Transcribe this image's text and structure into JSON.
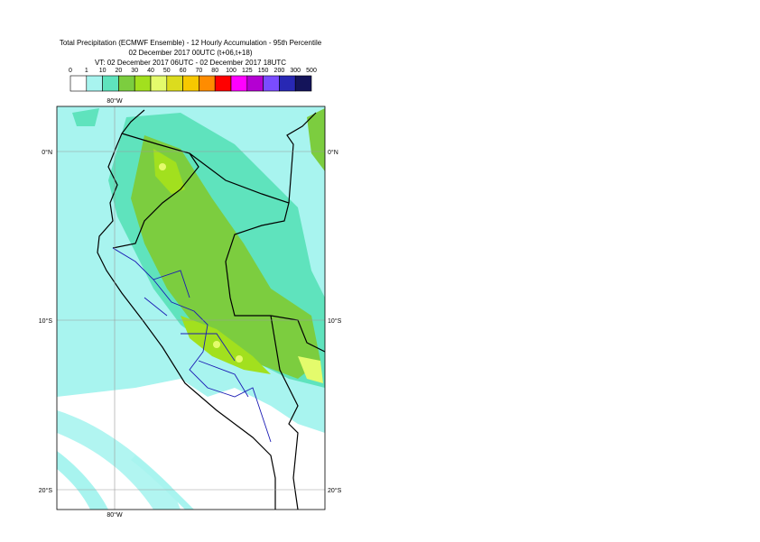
{
  "title": {
    "line1": "Total Precipitation (ECMWF Ensemble) - 12 Hourly Accumulation - 95th Percentile",
    "line2": "02 December 2017 00UTC (t+06,t+18)",
    "line3": "VT: 02 December 2017 06UTC - 02 December 2017 18UTC"
  },
  "legend": {
    "labels": [
      "0",
      "1",
      "10",
      "20",
      "30",
      "40",
      "50",
      "60",
      "70",
      "80",
      "100",
      "125",
      "150",
      "200",
      "300",
      "500"
    ],
    "colors": [
      "#ffffff",
      "#a8f4ef",
      "#5fe3bd",
      "#7ccd3f",
      "#a2e01e",
      "#e4fb6c",
      "#dcdc1e",
      "#f7c800",
      "#ff8c00",
      "#ff0000",
      "#ff00ff",
      "#b400d2",
      "#7a4cff",
      "#2828b4",
      "#14145a"
    ]
  },
  "map": {
    "lon_label": "80°W",
    "lat_labels": [
      "0°N",
      "10°S",
      "20°S"
    ]
  }
}
